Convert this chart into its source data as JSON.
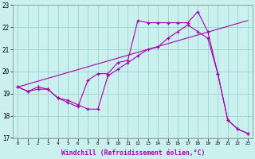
{
  "xlabel": "Windchill (Refroidissement éolien,°C)",
  "xlim": [
    -0.5,
    23.5
  ],
  "ylim": [
    17,
    23
  ],
  "yticks": [
    17,
    18,
    19,
    20,
    21,
    22,
    23
  ],
  "xticks": [
    0,
    1,
    2,
    3,
    4,
    5,
    6,
    7,
    8,
    9,
    10,
    11,
    12,
    13,
    14,
    15,
    16,
    17,
    18,
    19,
    20,
    21,
    22,
    23
  ],
  "bg_color": "#caf0f0",
  "grid_color": "#a0d8d0",
  "line_color": "#aa00aa",
  "line1_x": [
    0,
    1,
    2,
    3,
    4,
    5,
    6,
    7,
    8,
    9,
    10,
    11,
    12,
    13,
    14,
    15,
    16,
    17,
    18,
    19,
    20,
    21,
    22,
    23
  ],
  "line1_y": [
    19.3,
    19.1,
    19.3,
    19.2,
    18.8,
    18.6,
    18.4,
    19.6,
    19.9,
    19.9,
    20.4,
    20.5,
    22.3,
    22.2,
    22.2,
    22.2,
    22.2,
    22.2,
    22.7,
    21.8,
    19.9,
    17.8,
    17.4,
    17.2
  ],
  "line2_x": [
    0,
    1,
    2,
    3,
    4,
    5,
    6,
    7,
    8,
    9,
    10,
    11,
    12,
    13,
    14,
    15,
    16,
    17,
    18,
    19,
    20,
    21,
    22,
    23
  ],
  "line2_y": [
    19.3,
    19.1,
    19.2,
    19.2,
    18.8,
    18.7,
    18.5,
    18.3,
    18.3,
    19.8,
    20.1,
    20.4,
    20.7,
    21.0,
    21.1,
    21.5,
    21.8,
    22.1,
    21.8,
    21.5,
    19.9,
    17.8,
    17.4,
    17.2
  ],
  "line3_x": [
    0,
    23
  ],
  "line3_y": [
    19.3,
    22.3
  ]
}
